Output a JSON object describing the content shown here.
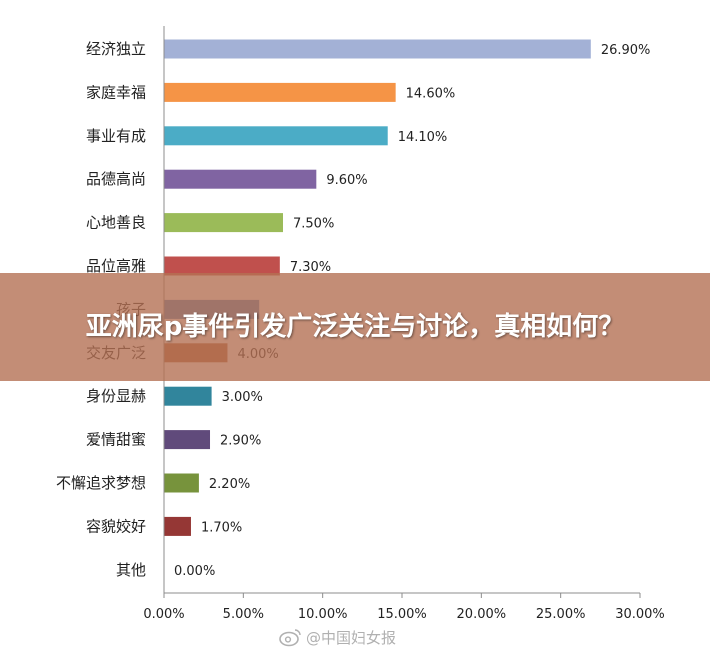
{
  "overlay": {
    "headline": "亚洲尿p事件引发广泛关注与讨论，真相如何？"
  },
  "watermark": {
    "icon": "weibo-icon",
    "text": "@中国妇女报"
  },
  "chart_data": {
    "type": "bar",
    "orientation": "horizontal",
    "title": "",
    "xlabel": "",
    "ylabel": "",
    "xlim": [
      0,
      30
    ],
    "x_ticks": [
      "0.00%",
      "5.00%",
      "10.00%",
      "15.00%",
      "20.00%",
      "25.00%",
      "30.00%"
    ],
    "grid": false,
    "categories": [
      "经济独立",
      "家庭幸福",
      "事业有成",
      "品德高尚",
      "心地善良",
      "品位高雅",
      "孩子",
      "交友广泛",
      "身份显赫",
      "爱情甜蜜",
      "不懈追求梦想",
      "容貌姣好",
      "其他"
    ],
    "values": [
      26.9,
      14.6,
      14.1,
      9.6,
      7.5,
      7.3,
      6.0,
      4.0,
      3.0,
      2.9,
      2.2,
      1.7,
      0.0
    ],
    "data_labels": [
      "26.90%",
      "14.60%",
      "14.10%",
      "9.60%",
      "7.50%",
      "7.30%",
      "",
      "4.00%",
      "3.00%",
      "2.90%",
      "2.20%",
      "1.70%",
      "0.00%"
    ],
    "colors": [
      "#a3b1d6",
      "#f59446",
      "#4bacc6",
      "#8064a2",
      "#9bbb59",
      "#c0504d",
      "#4f81bd",
      "#b0623a",
      "#31859c",
      "#604a7b",
      "#77933c",
      "#953735",
      "#4f81bd"
    ]
  }
}
